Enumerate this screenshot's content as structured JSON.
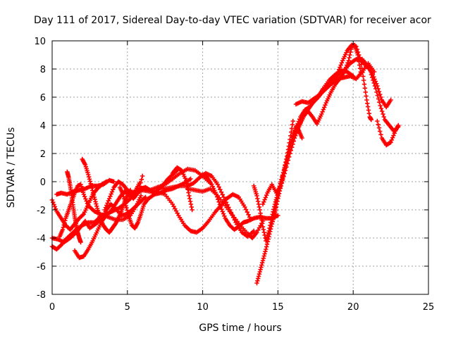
{
  "chart_data": {
    "type": "scatter",
    "title": "Day 111 of 2017, Sidereal Day-to-day VTEC variation (SDTVAR) for receiver acor",
    "xlabel": "GPS time / hours",
    "ylabel": "SDTVAR / TECUs",
    "xlim": [
      0,
      25
    ],
    "ylim": [
      -8,
      10
    ],
    "x_ticks": [
      "0",
      "5",
      "10",
      "15",
      "20",
      "25"
    ],
    "y_ticks": [
      "-8",
      "-6",
      "-4",
      "-2",
      "0",
      "2",
      "4",
      "6",
      "8",
      "10"
    ],
    "grid": true,
    "marker": "+",
    "color": "#ff0000",
    "series": [
      {
        "x": [
          0.0,
          0.3,
          0.6,
          0.9,
          1.2,
          1.5,
          1.8,
          2.1,
          2.4,
          2.7,
          3.0,
          3.3,
          3.6
        ],
        "y": [
          -1.3,
          -2.1,
          -2.6,
          -3.1,
          -3.4,
          -3.0,
          -2.6,
          -2.3,
          -1.6,
          -0.9,
          -0.5,
          -0.2,
          0.0
        ]
      },
      {
        "x": [
          0.0,
          0.3,
          0.6,
          0.9,
          1.2,
          1.6,
          2.0,
          2.4,
          2.8,
          3.2,
          3.6,
          4.0,
          4.4,
          4.8,
          5.2,
          5.5,
          5.8
        ],
        "y": [
          -4.6,
          -4.8,
          -4.5,
          -4.1,
          -3.8,
          -3.4,
          -3.1,
          -2.9,
          -2.9,
          -2.5,
          -2.3,
          -2.1,
          -1.9,
          -1.6,
          -1.2,
          -0.7,
          -0.1
        ]
      },
      {
        "x": [
          0.0,
          0.4,
          0.8,
          1.2,
          1.6,
          1.9,
          2.2,
          2.5,
          2.9,
          3.3,
          3.6,
          3.9,
          4.2,
          4.6,
          5.0,
          5.4,
          5.8,
          6.2
        ],
        "y": [
          -4.0,
          -4.1,
          -4.3,
          -4.0,
          -3.6,
          -3.2,
          -2.8,
          -3.3,
          -3.0,
          -2.6,
          -2.0,
          -1.6,
          -1.9,
          -2.4,
          -2.3,
          -1.9,
          -1.5,
          -1.1
        ]
      },
      {
        "x": [
          0.3,
          0.6,
          1.0,
          1.4,
          1.8,
          2.2,
          2.6,
          3.0,
          3.4,
          3.8,
          4.1
        ],
        "y": [
          -0.9,
          -0.8,
          -0.9,
          -0.7,
          -0.6,
          -0.5,
          -0.3,
          -0.3,
          -0.2,
          0.1,
          0.0
        ]
      },
      {
        "x": [
          0.5,
          0.7,
          0.9,
          1.1,
          1.3,
          1.5,
          1.7,
          1.9,
          2.1,
          2.4,
          2.8,
          3.2,
          3.7,
          4.2,
          4.7,
          5.2,
          5.6,
          5.9
        ],
        "y": [
          -3.9,
          -3.4,
          -2.6,
          -2.0,
          -1.4,
          -0.8,
          -0.3,
          -0.2,
          -0.9,
          -1.7,
          -2.1,
          -2.3,
          -2.5,
          -2.7,
          -2.7,
          -2.4,
          -1.7,
          -1.0
        ]
      },
      {
        "x": [
          1.0,
          1.1,
          1.2,
          1.3,
          1.4,
          1.5,
          1.6,
          1.7,
          1.8,
          1.9
        ],
        "y": [
          0.7,
          0.3,
          -0.3,
          -1.0,
          -1.8,
          -2.5,
          -3.1,
          -3.6,
          -4.0,
          -4.3
        ]
      },
      {
        "x": [
          1.5,
          1.8,
          2.1,
          2.4,
          2.7,
          3.0,
          3.3,
          3.6,
          3.9,
          4.2,
          4.5,
          4.8,
          5.1,
          5.4,
          5.7,
          6.0
        ],
        "y": [
          -4.9,
          -5.4,
          -5.3,
          -4.8,
          -4.2,
          -3.5,
          -2.8,
          -2.4,
          -2.1,
          -1.6,
          -1.1,
          -0.7,
          -0.9,
          -1.2,
          -0.8,
          0.4
        ]
      },
      {
        "x": [
          2.0,
          2.2,
          2.4,
          2.6,
          2.8,
          3.0,
          3.2,
          3.4,
          3.6,
          3.8,
          4.0,
          4.2,
          4.4,
          4.6,
          4.8,
          5.0,
          5.2
        ],
        "y": [
          1.6,
          1.2,
          0.5,
          -0.3,
          -1.1,
          -1.9,
          -2.6,
          -3.1,
          -3.4,
          -3.6,
          -3.3,
          -3.0,
          -2.6,
          -2.1,
          -1.5,
          -1.0,
          -0.6
        ]
      },
      {
        "x": [
          3.5,
          3.8,
          4.1,
          4.4,
          4.7,
          5.0,
          5.3,
          5.6,
          5.9,
          6.2,
          6.5,
          6.8,
          7.1,
          7.4,
          7.7,
          8.0,
          8.3
        ],
        "y": [
          -2.0,
          -1.2,
          -0.4,
          0.0,
          -0.2,
          -0.6,
          -0.8,
          -0.7,
          -0.5,
          -0.4,
          -0.6,
          -0.8,
          -0.5,
          -0.2,
          0.2,
          0.5,
          0.8
        ]
      },
      {
        "x": [
          4.5,
          4.7,
          4.9,
          5.1,
          5.3,
          5.5,
          5.7,
          5.9,
          6.1,
          6.4,
          6.8,
          7.2,
          7.6,
          8.0,
          8.4,
          8.8,
          9.2
        ],
        "y": [
          -0.4,
          -0.9,
          -1.7,
          -2.5,
          -3.1,
          -3.3,
          -2.9,
          -2.3,
          -1.6,
          -1.2,
          -0.9,
          -0.8,
          -0.6,
          -0.5,
          -0.3,
          -0.1,
          0.2
        ]
      },
      {
        "x": [
          5.5,
          6.0,
          6.5,
          7.0,
          7.5,
          8.0,
          8.5,
          9.0,
          9.5,
          10.0,
          10.5
        ],
        "y": [
          -0.9,
          -0.6,
          -0.6,
          -0.4,
          -0.2,
          0.2,
          0.6,
          0.9,
          0.8,
          0.4,
          -0.1
        ]
      },
      {
        "x": [
          6.0,
          6.5,
          7.0,
          7.5,
          8.0,
          8.4,
          8.8,
          9.2,
          9.6,
          10.0,
          10.4,
          10.8,
          11.2,
          11.6,
          12.0,
          12.4,
          12.8,
          13.2
        ],
        "y": [
          -0.6,
          -0.7,
          -0.7,
          -0.9,
          -1.6,
          -2.4,
          -3.1,
          -3.5,
          -3.6,
          -3.3,
          -2.8,
          -2.2,
          -1.7,
          -1.2,
          -0.9,
          -1.1,
          -1.8,
          -2.7
        ]
      },
      {
        "x": [
          7.0,
          7.5,
          8.0,
          8.5,
          9.0,
          9.4,
          9.8,
          10.2,
          10.6,
          11.0,
          11.4,
          11.8,
          12.2,
          12.6,
          13.0,
          13.4
        ],
        "y": [
          -0.4,
          -0.5,
          -0.4,
          -0.3,
          -0.3,
          -0.1,
          0.3,
          0.6,
          0.4,
          -0.2,
          -1.1,
          -2.0,
          -2.9,
          -3.6,
          -3.9,
          -3.5
        ]
      },
      {
        "x": [
          8.0,
          8.3,
          8.6,
          8.9,
          9.1,
          9.3
        ],
        "y": [
          0.6,
          1.0,
          0.8,
          0.1,
          -1.0,
          -2.0
        ]
      },
      {
        "x": [
          9.0,
          9.5,
          10.0,
          10.5,
          11.0,
          11.5,
          12.0,
          12.5,
          13.0,
          13.3,
          13.6,
          14.0
        ],
        "y": [
          -0.5,
          -0.6,
          -0.7,
          -0.5,
          -1.0,
          -1.7,
          -2.4,
          -3.1,
          -3.7,
          -4.0,
          -3.6,
          -2.8
        ]
      },
      {
        "x": [
          10.0,
          10.3,
          10.6,
          10.9,
          11.2,
          11.5,
          11.8,
          12.1,
          12.4,
          12.7,
          13.0,
          13.4,
          13.8,
          14.2,
          14.6,
          15.0
        ],
        "y": [
          0.5,
          0.3,
          -0.2,
          -0.9,
          -1.8,
          -2.6,
          -3.1,
          -3.4,
          -3.2,
          -2.9,
          -2.8,
          -2.6,
          -2.5,
          -2.6,
          -2.6,
          -2.4
        ]
      },
      {
        "x": [
          13.4,
          13.6,
          13.8,
          14.0,
          14.2,
          14.4,
          14.6,
          14.8,
          15.0,
          15.2,
          15.4,
          15.6,
          15.8,
          16.0
        ],
        "y": [
          -0.3,
          -1.0,
          -2.0,
          -3.2,
          -4.2,
          -3.5,
          -2.5,
          -1.6,
          -0.8,
          0.0,
          0.8,
          1.8,
          3.0,
          4.3
        ]
      },
      {
        "x": [
          13.6,
          13.8,
          14.0,
          14.2,
          14.4,
          14.6,
          14.8,
          15.0,
          15.3,
          15.6,
          15.9,
          16.2,
          16.5,
          16.8,
          17.1,
          17.4,
          17.7,
          18.0,
          18.4,
          18.8,
          19.2,
          19.6,
          20.0
        ],
        "y": [
          -7.2,
          -6.4,
          -5.6,
          -4.8,
          -3.9,
          -3.0,
          -2.1,
          -0.9,
          0.4,
          1.6,
          2.8,
          3.8,
          4.6,
          5.1,
          5.3,
          5.7,
          6.1,
          6.6,
          7.2,
          7.6,
          7.9,
          7.8,
          7.5
        ]
      },
      {
        "x": [
          14.0,
          14.3,
          14.6,
          14.9,
          15.2,
          15.5,
          15.8,
          16.1,
          16.4,
          16.7,
          17.0,
          17.3,
          17.6,
          17.9,
          18.2,
          18.6,
          19.0,
          19.4,
          19.8,
          20.2,
          20.6,
          21.0
        ],
        "y": [
          -1.6,
          -0.8,
          -0.2,
          -0.8,
          -0.3,
          0.8,
          2.0,
          3.1,
          3.9,
          4.6,
          5.1,
          5.6,
          5.9,
          6.3,
          6.7,
          7.2,
          7.6,
          7.9,
          8.4,
          8.7,
          8.7,
          8.2
        ]
      },
      {
        "x": [
          14.6,
          14.8,
          15.0,
          15.2,
          15.4,
          15.6,
          15.8,
          16.0,
          16.2,
          16.4,
          16.6
        ],
        "y": [
          -3.0,
          -2.2,
          -1.2,
          -0.3,
          0.6,
          1.5,
          2.5,
          3.3,
          3.9,
          3.6,
          3.1
        ]
      },
      {
        "x": [
          15.8,
          16.1,
          16.4,
          16.7,
          17.0,
          17.3,
          17.6,
          17.9,
          18.2,
          18.5,
          18.8,
          19.1,
          19.4,
          19.7,
          19.9,
          20.1,
          20.3,
          20.5
        ],
        "y": [
          2.0,
          3.1,
          4.0,
          4.7,
          5.0,
          4.6,
          4.1,
          4.8,
          5.6,
          6.3,
          6.9,
          7.3,
          7.8,
          8.6,
          9.6,
          9.7,
          9.0,
          7.8
        ]
      },
      {
        "x": [
          16.2,
          16.6,
          17.0,
          17.4,
          17.8,
          18.2,
          18.6,
          19.0,
          19.4,
          19.8,
          20.2,
          20.6,
          21.0,
          21.4
        ],
        "y": [
          5.5,
          5.7,
          5.6,
          5.9,
          6.2,
          6.6,
          7.0,
          7.3,
          7.4,
          7.5,
          7.3,
          7.8,
          8.4,
          7.8
        ]
      },
      {
        "x": [
          19.0,
          19.3,
          19.6,
          19.9,
          20.2,
          20.5,
          20.7,
          20.9,
          21.1,
          21.2
        ],
        "y": [
          7.8,
          8.6,
          9.3,
          9.7,
          9.6,
          8.6,
          7.2,
          5.8,
          4.6,
          4.4
        ]
      },
      {
        "x": [
          20.4,
          20.7,
          21.0,
          21.3,
          21.6,
          21.9,
          22.2,
          22.5
        ],
        "y": [
          8.7,
          8.4,
          8.1,
          7.6,
          6.8,
          5.8,
          5.3,
          5.8
        ]
      },
      {
        "x": [
          21.2,
          21.5,
          21.8,
          22.1,
          22.4,
          22.7,
          23.0
        ],
        "y": [
          7.6,
          6.6,
          5.4,
          4.4,
          4.0,
          3.6,
          3.9
        ]
      },
      {
        "x": [
          21.6,
          21.9,
          22.2,
          22.5,
          22.8,
          23.0
        ],
        "y": [
          4.3,
          3.1,
          2.6,
          2.8,
          3.6,
          4.0
        ]
      }
    ]
  }
}
